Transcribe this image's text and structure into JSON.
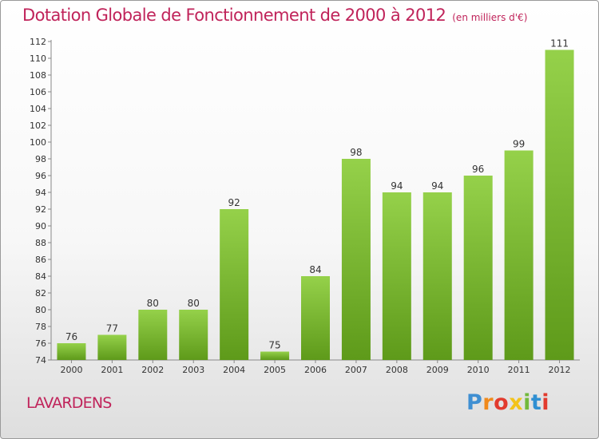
{
  "header": {
    "title": "Dotation Globale de Fonctionnement de 2000 à 2012",
    "subtitle": "(en milliers d'€)"
  },
  "footer": {
    "place": "LAVARDENS",
    "brand": "Proxiti",
    "brand_colors": [
      "#3f8fd2",
      "#f08a1c",
      "#e23b2e",
      "#f3c31a",
      "#72b93c",
      "#2f8fd2",
      "#e23b2e"
    ]
  },
  "chart_data": {
    "type": "bar",
    "categories": [
      "2000",
      "2001",
      "2002",
      "2003",
      "2004",
      "2005",
      "2006",
      "2007",
      "2008",
      "2009",
      "2010",
      "2011",
      "2012"
    ],
    "values": [
      76,
      77,
      80,
      80,
      92,
      75,
      84,
      98,
      94,
      94,
      96,
      99,
      111
    ],
    "ylim": [
      74,
      112
    ],
    "yticks": [
      74,
      76,
      78,
      80,
      82,
      84,
      86,
      88,
      90,
      92,
      94,
      96,
      98,
      100,
      102,
      104,
      106,
      108,
      110,
      112
    ],
    "grid": false,
    "bar_color_top": "#95d14a",
    "bar_color_bottom": "#5e9a1a"
  }
}
